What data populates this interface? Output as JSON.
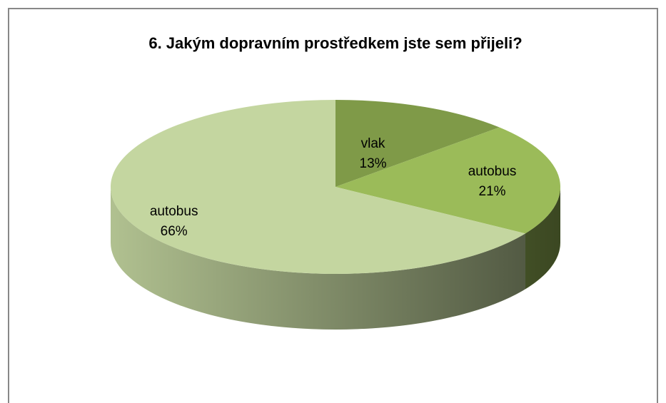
{
  "chart_data": {
    "type": "pie",
    "title": "6. Jakým dopravním prostředkem jste sem přijeli?",
    "categories": [
      "vlak",
      "autobus",
      "autobus"
    ],
    "values": [
      13,
      21,
      66
    ],
    "value_labels": [
      "13%",
      "21%",
      "66%"
    ],
    "colors": [
      "#7f9a48",
      "#9bbb59",
      "#c4d6a0"
    ]
  }
}
